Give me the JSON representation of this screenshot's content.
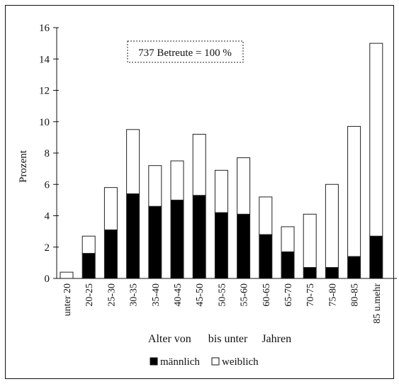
{
  "chart_data": {
    "type": "bar",
    "stacked": true,
    "ylabel": "Prozent",
    "xlabel": "Alter von      bis unter     Jahren",
    "annotation": "737 Betreute = 100 %",
    "ylim": [
      0,
      16
    ],
    "yticks": [
      0,
      2,
      4,
      6,
      8,
      10,
      12,
      14,
      16
    ],
    "categories": [
      "unter 20",
      "20-25",
      "25-30",
      "30-35",
      "35-40",
      "40-45",
      "45-50",
      "50-55",
      "55-60",
      "60-65",
      "65-70",
      "70-75",
      "75-80",
      "80-85",
      "85 u.mehr"
    ],
    "series": [
      {
        "name": "männlich",
        "color": "#000000",
        "values": [
          0.0,
          1.6,
          3.1,
          5.4,
          4.6,
          5.0,
          5.3,
          4.2,
          4.1,
          2.8,
          1.7,
          0.7,
          0.7,
          1.4,
          2.7
        ]
      },
      {
        "name": "weiblich",
        "color": "#ffffff",
        "values": [
          0.4,
          1.1,
          2.7,
          4.1,
          2.6,
          2.5,
          3.9,
          2.7,
          3.6,
          2.4,
          1.6,
          3.4,
          5.3,
          8.3,
          12.3
        ]
      }
    ],
    "legend": {
      "position": "bottom"
    },
    "grid": false
  }
}
